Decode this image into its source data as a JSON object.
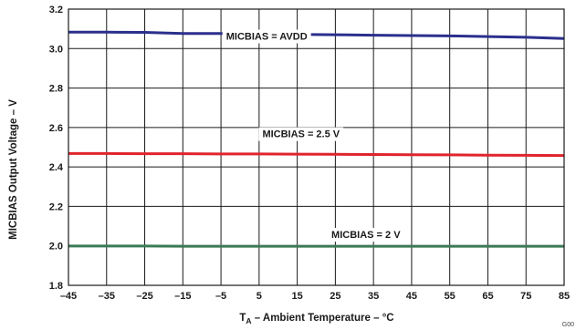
{
  "chart_data": {
    "type": "line",
    "xlabel": {
      "main": "T",
      "sub": "A",
      "rest": " – Ambient Temperature – °C"
    },
    "ylabel": "MICBIAS Output Voltage  – V",
    "xlim": [
      -45,
      85
    ],
    "ylim": [
      1.8,
      3.2
    ],
    "xticks": [
      -45,
      -35,
      -25,
      -15,
      -5,
      5,
      15,
      25,
      35,
      45,
      55,
      65,
      75,
      85
    ],
    "xtick_labels": [
      "–45",
      "–35",
      "–25",
      "–15",
      "–5",
      "5",
      "15",
      "25",
      "35",
      "45",
      "55",
      "65",
      "75",
      "85"
    ],
    "yticks": [
      1.8,
      2.0,
      2.2,
      2.4,
      2.6,
      2.8,
      3.0,
      3.2
    ],
    "ytick_labels": [
      "1.8",
      "2.0",
      "2.2",
      "2.4",
      "2.6",
      "2.8",
      "3.0",
      "3.2"
    ],
    "grid": true,
    "series": [
      {
        "name": "MICBIAS = AVDD",
        "color": "#2b2f8c",
        "x": [
          -45,
          -35,
          -25,
          -15,
          -5,
          5,
          15,
          25,
          35,
          45,
          55,
          65,
          75,
          85
        ],
        "y": [
          3.083,
          3.083,
          3.082,
          3.076,
          3.076,
          3.074,
          3.072,
          3.07,
          3.068,
          3.066,
          3.064,
          3.061,
          3.057,
          3.051
        ]
      },
      {
        "name": "MICBIAS = 2.5 V",
        "color": "#e0242c",
        "x": [
          -45,
          -35,
          -25,
          -15,
          -5,
          5,
          15,
          25,
          35,
          45,
          55,
          65,
          75,
          85
        ],
        "y": [
          2.468,
          2.468,
          2.467,
          2.467,
          2.466,
          2.466,
          2.465,
          2.464,
          2.463,
          2.462,
          2.461,
          2.46,
          2.459,
          2.458
        ]
      },
      {
        "name": "MICBIAS = 2 V",
        "color": "#3a7a55",
        "x": [
          -45,
          -35,
          -25,
          -15,
          -5,
          5,
          15,
          25,
          35,
          45,
          55,
          65,
          75,
          85
        ],
        "y": [
          1.999,
          1.999,
          1.999,
          1.998,
          1.998,
          1.998,
          1.998,
          1.998,
          1.998,
          1.998,
          1.998,
          1.998,
          1.998,
          1.998
        ]
      }
    ],
    "annotations": [
      {
        "text": "MICBIAS = AVDD",
        "x": 7,
        "y": 3.045
      },
      {
        "text": "MICBIAS = 2.5 V",
        "x": 16,
        "y": 2.55
      },
      {
        "text": "MICBIAS = 2 V",
        "x": 33,
        "y": 2.04
      }
    ],
    "figure_code": "G00"
  }
}
